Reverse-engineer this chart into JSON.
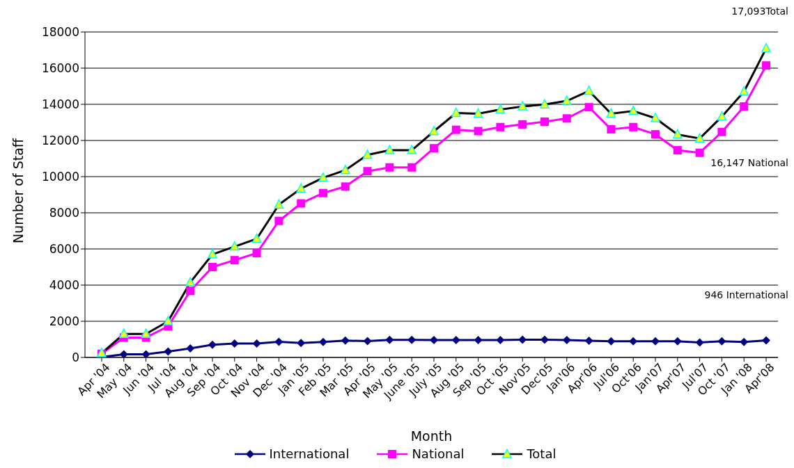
{
  "chart_data": {
    "type": "line",
    "xlabel": "Month",
    "ylabel": "Number of Staff",
    "categories": [
      "Apr '04",
      "May '04",
      "Jun '04",
      "Jul '04",
      "Aug '04",
      "Sep '04",
      "Oct '04",
      "Nov '04",
      "Dec '04",
      "Jan '05",
      "Feb '05",
      "Mar '05",
      "Apr '05",
      "May '05",
      "June '05",
      "July '05",
      "Aug '05",
      "Sep '05",
      "Oct '05",
      "Nov'05",
      "Dec'05",
      "Jan'06",
      "Apr'06",
      "Jul'06",
      "Oct'06",
      "Jan'07",
      "Apr'07",
      "Jul'07",
      "Oct '07",
      "Jan '08",
      "Apr'08"
    ],
    "series": [
      {
        "name": "International",
        "color": "#000080",
        "marker": "diamond",
        "values": [
          20,
          170,
          170,
          330,
          500,
          700,
          770,
          770,
          870,
          800,
          860,
          930,
          900,
          970,
          970,
          960,
          960,
          960,
          960,
          980,
          980,
          960,
          920,
          890,
          890,
          890,
          890,
          830,
          890,
          860,
          946
        ]
      },
      {
        "name": "National",
        "color": "#ff00ff",
        "marker": "square",
        "values": [
          200,
          1100,
          1100,
          1720,
          3680,
          5000,
          5380,
          5770,
          7550,
          8520,
          9090,
          9450,
          10300,
          10510,
          10510,
          11570,
          12590,
          12520,
          12740,
          12890,
          13040,
          13220,
          13840,
          12620,
          12740,
          12340,
          11460,
          11320,
          12470,
          13880,
          16147
        ]
      },
      {
        "name": "Total",
        "color": "#000000",
        "marker": "triangle",
        "values": [
          240,
          1300,
          1300,
          2000,
          4150,
          5700,
          6130,
          6560,
          8450,
          9340,
          9940,
          10360,
          11200,
          11460,
          11460,
          12510,
          13520,
          13480,
          13710,
          13880,
          13990,
          14190,
          14740,
          13480,
          13630,
          13230,
          12330,
          12110,
          13320,
          14700,
          17093
        ]
      }
    ],
    "ylim": [
      0,
      18000
    ],
    "yticks": [
      0,
      2000,
      4000,
      6000,
      8000,
      10000,
      12000,
      14000,
      16000,
      18000
    ],
    "grid": "y",
    "legend": "bottom",
    "line_style": "solid",
    "annotations": [
      "17,093Total",
      "16,147 National",
      "946 International"
    ]
  }
}
